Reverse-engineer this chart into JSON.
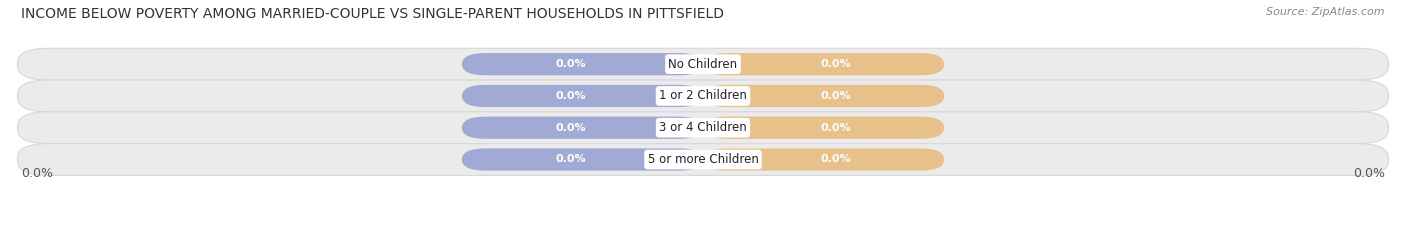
{
  "title": "INCOME BELOW POVERTY AMONG MARRIED-COUPLE VS SINGLE-PARENT HOUSEHOLDS IN PITTSFIELD",
  "source": "Source: ZipAtlas.com",
  "categories": [
    "No Children",
    "1 or 2 Children",
    "3 or 4 Children",
    "5 or more Children"
  ],
  "married_values": [
    0.0,
    0.0,
    0.0,
    0.0
  ],
  "single_values": [
    0.0,
    0.0,
    0.0,
    0.0
  ],
  "married_color": "#a0aad4",
  "single_color": "#e8c08a",
  "row_bg_color": "#ebebeb",
  "row_bg_edge": "#d8d8d8",
  "category_text_color": "#222222",
  "value_text_color": "#ffffff",
  "axis_label_left": "0.0%",
  "axis_label_right": "0.0%",
  "title_fontsize": 10,
  "source_fontsize": 8,
  "tick_fontsize": 9,
  "legend_fontsize": 9,
  "fig_width": 14.06,
  "fig_height": 2.33,
  "dpi": 100
}
